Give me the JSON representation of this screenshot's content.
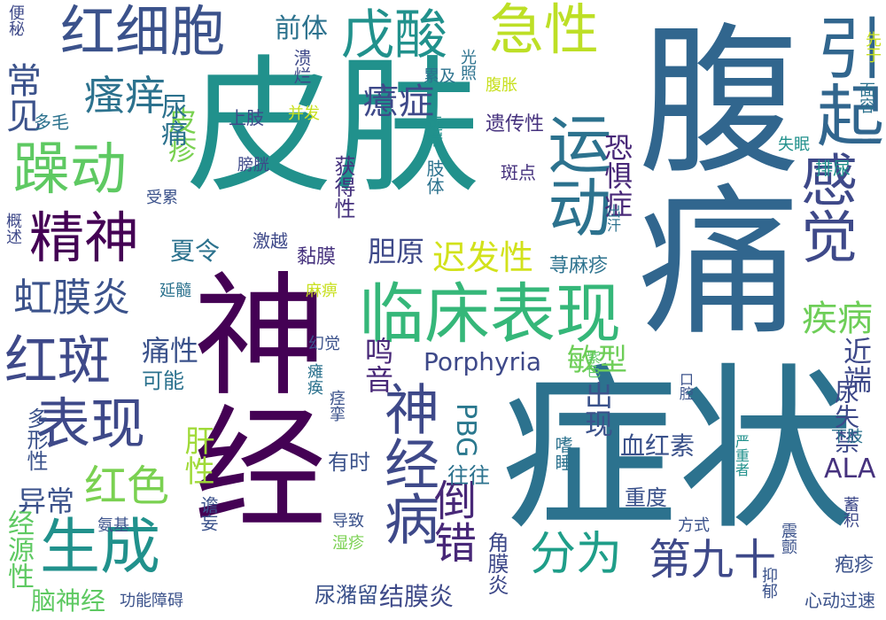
{
  "words": [
    {
      "text": "腹痛",
      "color": "#31668e"
    },
    {
      "text": "皮肤",
      "color": "#21918c"
    },
    {
      "text": "神经",
      "color": "#440154"
    },
    {
      "text": "症状",
      "color": "#2c728e"
    },
    {
      "text": "临床表现",
      "color": "#35b779"
    },
    {
      "text": "运动",
      "color": "#2c728e"
    },
    {
      "text": "引起",
      "color": "#31668e"
    },
    {
      "text": "感觉",
      "color": "#3e4989"
    },
    {
      "text": "神经病",
      "color": "#3e4989"
    },
    {
      "text": "红细胞",
      "color": "#3b528b"
    },
    {
      "text": "急性",
      "color": "#bddf26"
    },
    {
      "text": "戊酸",
      "color": "#21918c"
    },
    {
      "text": "躁动",
      "color": "#5ec962"
    },
    {
      "text": "精神",
      "color": "#440154"
    },
    {
      "text": "红斑",
      "color": "#3e4989"
    },
    {
      "text": "表现",
      "color": "#3e4989"
    },
    {
      "text": "生成",
      "color": "#21918c"
    },
    {
      "text": "分为",
      "color": "#1f9e89"
    },
    {
      "text": "第九十",
      "color": "#3e4989"
    },
    {
      "text": "虹膜炎",
      "color": "#3b528b"
    },
    {
      "text": "瘙痒",
      "color": "#2c728e"
    },
    {
      "text": "皮疹",
      "color": "#7ad151"
    },
    {
      "text": "倒错",
      "color": "#482878"
    },
    {
      "text": "红色",
      "color": "#7ad151"
    },
    {
      "text": "癔症",
      "color": "#3e4989"
    },
    {
      "text": "常见",
      "color": "#3b528b"
    },
    {
      "text": "疾病",
      "color": "#6ece58"
    },
    {
      "text": "前体",
      "color": "#2c728e"
    },
    {
      "text": "尿痛",
      "color": "#2c728e"
    },
    {
      "text": "恐惧症",
      "color": "#482878"
    },
    {
      "text": "迟发性",
      "color": "#d2e21b"
    },
    {
      "text": "夏令",
      "color": "#2c728e"
    },
    {
      "text": "胆原",
      "color": "#3e4989"
    },
    {
      "text": "痛性",
      "color": "#3b528b"
    },
    {
      "text": "异常",
      "color": "#3b528b"
    },
    {
      "text": "鸣音",
      "color": "#482878"
    },
    {
      "text": "Porphyria",
      "color": "#3e4989"
    },
    {
      "text": "敏型",
      "color": "#6ece58"
    },
    {
      "text": "近端",
      "color": "#3e4989"
    },
    {
      "text": "出现",
      "color": "#3b528b"
    },
    {
      "text": "尿失禁",
      "color": "#3e4989"
    },
    {
      "text": "肝性",
      "color": "#a0da39"
    },
    {
      "text": "ALA",
      "color": "#46327e"
    },
    {
      "text": "PBG",
      "color": "#2a788e"
    },
    {
      "text": "有时",
      "color": "#3b528b"
    },
    {
      "text": "往往",
      "color": "#2c728e"
    },
    {
      "text": "血红素",
      "color": "#3b528b"
    },
    {
      "text": "重度",
      "color": "#3b528b"
    },
    {
      "text": "经源性",
      "color": "#5ec962"
    },
    {
      "text": "多形性",
      "color": "#3b528b"
    },
    {
      "text": "脑神经",
      "color": "#5ec962"
    },
    {
      "text": "尿潴留",
      "color": "#3b528b"
    },
    {
      "text": "结膜炎",
      "color": "#3e4989"
    },
    {
      "text": "角膜炎",
      "color": "#3e4989"
    },
    {
      "text": "可能",
      "color": "#2c728e"
    },
    {
      "text": "获得性",
      "color": "#46327e"
    },
    {
      "text": "肢体",
      "color": "#2c728e"
    },
    {
      "text": "遗传性",
      "color": "#46327e"
    },
    {
      "text": "斑点",
      "color": "#46327e"
    },
    {
      "text": "荨麻疹",
      "color": "#2c728e"
    },
    {
      "text": "黏膜",
      "color": "#46327e"
    },
    {
      "text": "激越",
      "color": "#3e4989"
    },
    {
      "text": "上肢",
      "color": "#3e4989"
    },
    {
      "text": "并发",
      "color": "#c8e020"
    },
    {
      "text": "膀胱",
      "color": "#3e4989"
    },
    {
      "text": "受累",
      "color": "#3b528b"
    },
    {
      "text": "多毛",
      "color": "#2c728e"
    },
    {
      "text": "溃烂",
      "color": "#3e4989"
    },
    {
      "text": "光照",
      "color": "#2c728e"
    },
    {
      "text": "累及",
      "color": "#2c728e"
    },
    {
      "text": "腹胀",
      "color": "#c8e020"
    },
    {
      "text": "远端",
      "color": "#21918c"
    },
    {
      "text": "便秘",
      "color": "#3e4989"
    },
    {
      "text": "概述",
      "color": "#3e4989"
    },
    {
      "text": "延髓",
      "color": "#2c728e"
    },
    {
      "text": "麻痹",
      "color": "#c8e020"
    },
    {
      "text": "幻觉",
      "color": "#3b528b"
    },
    {
      "text": "瘫痪",
      "color": "#2c728e"
    },
    {
      "text": "痉挛",
      "color": "#3b528b"
    },
    {
      "text": "谵妄",
      "color": "#3b528b"
    },
    {
      "text": "湿疹",
      "color": "#7ad151"
    },
    {
      "text": "导致",
      "color": "#3b528b"
    },
    {
      "text": "氨基",
      "color": "#3b528b"
    },
    {
      "text": "功能障碍",
      "color": "#3b528b"
    },
    {
      "text": "方式",
      "color": "#3b528b"
    },
    {
      "text": "嗜睡",
      "color": "#2c728e"
    },
    {
      "text": "紫色",
      "color": "#5ec962"
    },
    {
      "text": "口腔",
      "color": "#3b528b"
    },
    {
      "text": "出汗",
      "color": "#2c728e"
    },
    {
      "text": "失眠",
      "color": "#21918c"
    },
    {
      "text": "排尿",
      "color": "#21918c"
    },
    {
      "text": "面容",
      "color": "#2c728e"
    },
    {
      "text": "先于",
      "color": "#c8e020"
    },
    {
      "text": "下肢",
      "color": "#2c728e"
    },
    {
      "text": "严重者",
      "color": "#21918c"
    },
    {
      "text": "蓄积",
      "color": "#3e4989"
    },
    {
      "text": "震颤",
      "color": "#3b528b"
    },
    {
      "text": "抑郁",
      "color": "#3b528b"
    },
    {
      "text": "疱疹",
      "color": "#3b528b"
    },
    {
      "text": "心动过速",
      "color": "#3b528b"
    }
  ]
}
